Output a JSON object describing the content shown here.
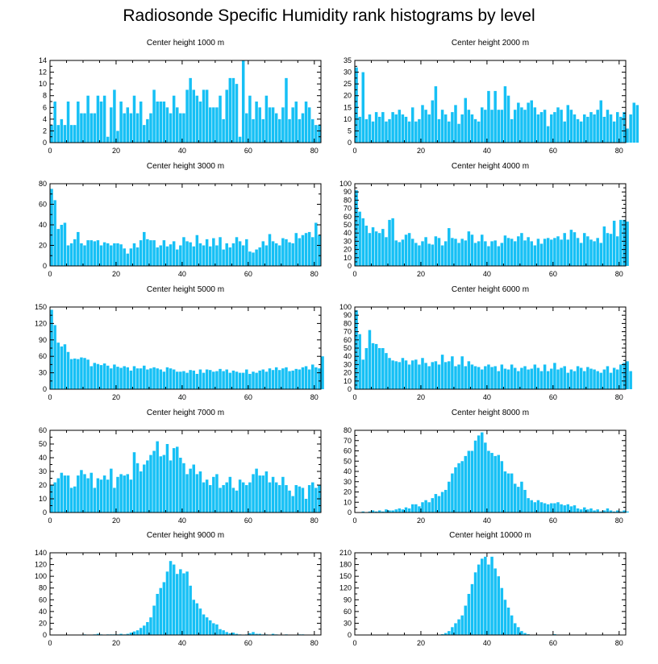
{
  "title": "Radiosonde Specific Humidity rank histograms by level",
  "chart_data": [
    {
      "type": "bar",
      "title": "Center height 1000 m",
      "xlim": [
        0,
        82
      ],
      "ylim": [
        0,
        14
      ],
      "xticks": [
        0,
        20,
        40,
        60,
        80
      ],
      "yticks": [
        0,
        2,
        4,
        6,
        8,
        10,
        12,
        14
      ],
      "values": [
        3,
        7,
        3,
        4,
        3,
        7,
        3,
        3,
        7,
        5,
        5,
        8,
        5,
        5,
        8,
        7,
        8,
        1,
        6,
        9,
        2,
        7,
        5,
        6,
        5,
        8,
        5,
        7,
        3,
        4,
        5,
        9,
        7,
        7,
        7,
        6,
        5,
        8,
        6,
        5,
        5,
        9,
        11,
        9,
        8,
        7,
        9,
        9,
        6,
        6,
        6,
        8,
        4,
        9,
        11,
        11,
        10,
        1,
        14,
        5,
        8,
        4,
        7,
        6,
        4,
        8,
        6,
        6,
        5,
        4,
        6,
        11,
        4,
        6,
        7,
        4,
        5,
        7,
        6,
        4,
        3,
        3
      ]
    },
    {
      "type": "bar",
      "title": "Center height 2000 m",
      "xlim": [
        0,
        82
      ],
      "ylim": [
        0,
        35
      ],
      "xticks": [
        0,
        20,
        40,
        60,
        80
      ],
      "yticks": [
        0,
        5,
        10,
        15,
        20,
        25,
        30,
        35
      ],
      "values": [
        32,
        11,
        30,
        10,
        12,
        9,
        13,
        11,
        13,
        9,
        10,
        13,
        12,
        14,
        12,
        11,
        9,
        15,
        9,
        10,
        16,
        14,
        12,
        18,
        24,
        10,
        14,
        12,
        9,
        13,
        16,
        8,
        12,
        19,
        14,
        12,
        10,
        9,
        15,
        14,
        22,
        14,
        22,
        14,
        14,
        24,
        20,
        10,
        14,
        17,
        15,
        14,
        17,
        18,
        15,
        12,
        13,
        14,
        7,
        12,
        13,
        15,
        14,
        9,
        16,
        14,
        12,
        10,
        9,
        12,
        11,
        13,
        12,
        14,
        18,
        11,
        14,
        12,
        9,
        13,
        11,
        13,
        6,
        12,
        17,
        16
      ]
    },
    {
      "type": "bar",
      "title": "Center height 3000 m",
      "xlim": [
        0,
        82
      ],
      "ylim": [
        0,
        80
      ],
      "xticks": [
        0,
        20,
        40,
        60,
        80
      ],
      "yticks": [
        0,
        20,
        40,
        60,
        80
      ],
      "values": [
        75,
        64,
        36,
        40,
        42,
        20,
        22,
        26,
        33,
        22,
        20,
        25,
        25,
        24,
        25,
        20,
        23,
        22,
        20,
        22,
        22,
        21,
        17,
        12,
        17,
        22,
        18,
        25,
        33,
        26,
        25,
        25,
        18,
        20,
        25,
        19,
        21,
        24,
        16,
        20,
        28,
        24,
        23,
        19,
        30,
        22,
        20,
        26,
        19,
        27,
        20,
        28,
        16,
        22,
        18,
        22,
        28,
        24,
        20,
        26,
        14,
        13,
        16,
        18,
        24,
        20,
        31,
        24,
        22,
        20,
        27,
        26,
        23,
        22,
        32,
        27,
        30,
        32,
        33,
        28,
        42,
        30
      ]
    },
    {
      "type": "bar",
      "title": "Center height 4000 m",
      "xlim": [
        0,
        82
      ],
      "ylim": [
        0,
        100
      ],
      "xticks": [
        0,
        20,
        40,
        60,
        80
      ],
      "yticks": [
        0,
        10,
        20,
        30,
        40,
        50,
        60,
        70,
        80,
        90,
        100
      ],
      "values": [
        92,
        66,
        58,
        49,
        40,
        47,
        42,
        40,
        45,
        35,
        56,
        58,
        31,
        29,
        32,
        38,
        40,
        33,
        28,
        25,
        30,
        35,
        27,
        26,
        36,
        34,
        25,
        30,
        46,
        34,
        33,
        28,
        33,
        31,
        42,
        38,
        28,
        30,
        38,
        30,
        24,
        30,
        31,
        24,
        28,
        37,
        34,
        33,
        30,
        36,
        40,
        31,
        35,
        30,
        25,
        33,
        27,
        33,
        34,
        32,
        34,
        36,
        32,
        40,
        32,
        44,
        41,
        34,
        28,
        40,
        36,
        32,
        30,
        34,
        28,
        48,
        40,
        39,
        55,
        36,
        56,
        56,
        54
      ]
    },
    {
      "type": "bar",
      "title": "Center height 5000 m",
      "xlim": [
        0,
        82
      ],
      "ylim": [
        0,
        150
      ],
      "xticks": [
        0,
        20,
        40,
        60,
        80
      ],
      "yticks": [
        0,
        30,
        60,
        90,
        120,
        150
      ],
      "values": [
        145,
        117,
        85,
        78,
        82,
        68,
        55,
        56,
        55,
        58,
        57,
        54,
        42,
        48,
        46,
        44,
        47,
        43,
        38,
        45,
        41,
        39,
        42,
        40,
        34,
        42,
        38,
        38,
        43,
        36,
        38,
        40,
        38,
        36,
        32,
        40,
        38,
        36,
        32,
        32,
        33,
        30,
        35,
        34,
        28,
        36,
        30,
        36,
        35,
        32,
        33,
        37,
        33,
        36,
        30,
        34,
        32,
        30,
        30,
        36,
        28,
        32,
        30,
        34,
        36,
        32,
        38,
        35,
        40,
        35,
        38,
        40,
        33,
        34,
        37,
        36,
        40,
        42,
        36,
        45,
        40,
        38,
        60
      ]
    },
    {
      "type": "bar",
      "title": "Center height 6000 m",
      "xlim": [
        0,
        82
      ],
      "ylim": [
        0,
        100
      ],
      "xticks": [
        0,
        20,
        40,
        60,
        80
      ],
      "yticks": [
        0,
        10,
        20,
        30,
        40,
        50,
        60,
        70,
        80,
        90,
        100
      ],
      "values": [
        96,
        67,
        36,
        50,
        72,
        56,
        55,
        50,
        50,
        44,
        38,
        35,
        34,
        33,
        38,
        35,
        30,
        35,
        36,
        30,
        38,
        32,
        28,
        33,
        34,
        30,
        42,
        33,
        34,
        40,
        28,
        30,
        40,
        28,
        34,
        30,
        28,
        27,
        24,
        28,
        30,
        27,
        28,
        22,
        30,
        25,
        24,
        30,
        26,
        22,
        26,
        28,
        24,
        25,
        30,
        26,
        22,
        30,
        22,
        25,
        32,
        24,
        26,
        28,
        20,
        24,
        22,
        28,
        26,
        22,
        27,
        25,
        24,
        22,
        20,
        24,
        28,
        20,
        26,
        24,
        30,
        32,
        34,
        22
      ]
    },
    {
      "type": "bar",
      "title": "Center height 7000 m",
      "xlim": [
        0,
        82
      ],
      "ylim": [
        0,
        60
      ],
      "xticks": [
        0,
        20,
        40,
        60,
        80
      ],
      "yticks": [
        0,
        10,
        20,
        30,
        40,
        50,
        60
      ],
      "values": [
        20,
        22,
        25,
        29,
        27,
        27,
        18,
        19,
        27,
        31,
        28,
        25,
        29,
        18,
        25,
        24,
        27,
        24,
        32,
        18,
        26,
        28,
        27,
        28,
        24,
        44,
        36,
        30,
        35,
        38,
        42,
        45,
        52,
        41,
        42,
        50,
        38,
        47,
        48,
        40,
        36,
        28,
        32,
        35,
        28,
        30,
        22,
        24,
        20,
        26,
        28,
        18,
        20,
        22,
        26,
        18,
        16,
        24,
        22,
        20,
        22,
        28,
        32,
        27,
        27,
        30,
        22,
        26,
        22,
        20,
        26,
        20,
        16,
        12,
        20,
        19,
        18,
        10,
        20,
        22,
        18,
        20
      ]
    },
    {
      "type": "bar",
      "title": "Center height 8000 m",
      "xlim": [
        0,
        82
      ],
      "ylim": [
        0,
        80
      ],
      "xticks": [
        0,
        20,
        40,
        60,
        80
      ],
      "yticks": [
        0,
        10,
        20,
        30,
        40,
        50,
        60,
        70,
        80
      ],
      "values": [
        0,
        0,
        1,
        0,
        1,
        2,
        1,
        2,
        1,
        3,
        2,
        2,
        3,
        4,
        3,
        5,
        4,
        8,
        8,
        6,
        10,
        12,
        10,
        14,
        18,
        16,
        20,
        22,
        30,
        38,
        44,
        48,
        50,
        55,
        60,
        60,
        70,
        75,
        78,
        68,
        60,
        58,
        55,
        56,
        50,
        40,
        38,
        38,
        28,
        25,
        30,
        22,
        14,
        12,
        10,
        12,
        10,
        9,
        8,
        9,
        9,
        10,
        8,
        7,
        8,
        6,
        7,
        4,
        3,
        5,
        3,
        4,
        2,
        3,
        1,
        2,
        4,
        2,
        1,
        2,
        1,
        2,
        1
      ]
    },
    {
      "type": "bar",
      "title": "Center height 9000 m",
      "xlim": [
        0,
        82
      ],
      "ylim": [
        0,
        140
      ],
      "xticks": [
        0,
        20,
        40,
        60,
        80
      ],
      "yticks": [
        0,
        20,
        40,
        60,
        80,
        100,
        120,
        140
      ],
      "values": [
        0,
        0,
        0,
        0,
        0,
        0,
        0,
        0,
        0,
        0,
        1,
        0,
        0,
        1,
        2,
        1,
        0,
        1,
        1,
        1,
        1,
        2,
        1,
        2,
        4,
        6,
        8,
        12,
        16,
        22,
        30,
        50,
        70,
        80,
        90,
        108,
        126,
        120,
        104,
        112,
        105,
        108,
        84,
        60,
        54,
        45,
        35,
        30,
        25,
        20,
        18,
        10,
        8,
        5,
        3,
        4,
        2,
        1,
        0,
        1,
        3,
        5,
        2,
        2,
        1,
        1,
        0,
        2,
        1,
        0,
        0,
        1,
        0,
        0,
        0,
        1,
        1,
        0,
        0,
        0,
        0
      ]
    },
    {
      "type": "bar",
      "title": "Center height 10000 m",
      "xlim": [
        0,
        82
      ],
      "ylim": [
        0,
        210
      ],
      "xticks": [
        0,
        20,
        40,
        60,
        80
      ],
      "yticks": [
        0,
        30,
        60,
        90,
        120,
        150,
        180,
        210
      ],
      "values": [
        0,
        0,
        0,
        0,
        0,
        0,
        0,
        0,
        0,
        0,
        0,
        0,
        0,
        0,
        0,
        0,
        0,
        0,
        0,
        0,
        0,
        0,
        0,
        0,
        0,
        0,
        2,
        5,
        10,
        20,
        30,
        40,
        50,
        75,
        105,
        130,
        160,
        180,
        195,
        200,
        180,
        200,
        170,
        150,
        120,
        90,
        70,
        50,
        30,
        20,
        10,
        5,
        2,
        1,
        0,
        0,
        0,
        0,
        0,
        0,
        2,
        1,
        0,
        0,
        0,
        0,
        0,
        0,
        1,
        0,
        0,
        0,
        0,
        0,
        0,
        0,
        0,
        0,
        0,
        0,
        0
      ]
    }
  ]
}
